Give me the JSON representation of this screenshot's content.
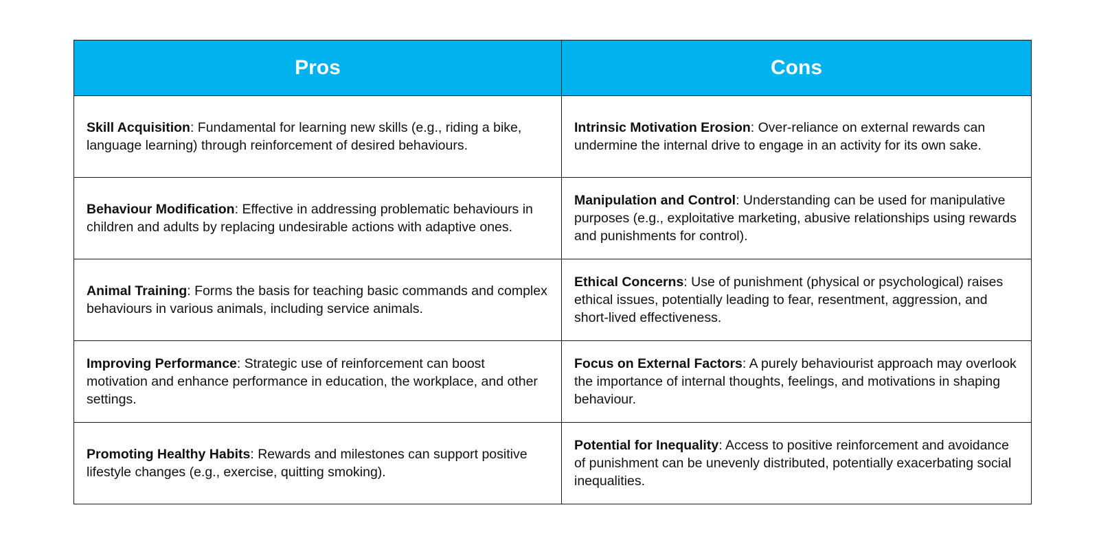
{
  "colors": {
    "header_bg": "#00B2EE",
    "header_text": "#FFFFFF",
    "border": "#1A1A1A"
  },
  "header": {
    "pros": "Pros",
    "cons": "Cons"
  },
  "rows": [
    {
      "pro_title": "Skill Acquisition",
      "pro_text": ": Fundamental for learning new skills (e.g., riding a bike, language learning) through reinforcement of desired behaviours.",
      "con_title": "Intrinsic Motivation Erosion",
      "con_text": ": Over-reliance on external rewards can undermine the internal drive to engage in an activity for its own sake."
    },
    {
      "pro_title": "Behaviour Modification",
      "pro_text": ": Effective in addressing problematic behaviours in children and adults by replacing undesirable actions with adaptive ones.",
      "con_title": "Manipulation and Control",
      "con_text": ": Understanding can be used for manipulative purposes (e.g., exploitative marketing, abusive relationships using rewards and punishments for control)."
    },
    {
      "pro_title": "Animal Training",
      "pro_text": ": Forms the basis for teaching basic commands and complex behaviours in various animals, including service animals.",
      "con_title": "Ethical Concerns",
      "con_text": ": Use of punishment (physical or psychological) raises ethical issues, potentially leading to fear, resentment, aggression, and short-lived effectiveness."
    },
    {
      "pro_title": "Improving Performance",
      "pro_text": ": Strategic use of reinforcement can boost motivation and enhance performance in education, the workplace, and other settings.",
      "con_title": "Focus on External Factors",
      "con_text": ": A purely behaviourist approach may overlook the importance of internal thoughts, feelings, and motivations in shaping behaviour."
    },
    {
      "pro_title": "Promoting Healthy Habits",
      "pro_text": ": Rewards and milestones can support positive lifestyle changes (e.g., exercise, quitting smoking).",
      "con_title": "Potential for Inequality",
      "con_text": ": Access to positive reinforcement and avoidance of punishment can be unevenly distributed, potentially exacerbating social inequalities."
    }
  ]
}
